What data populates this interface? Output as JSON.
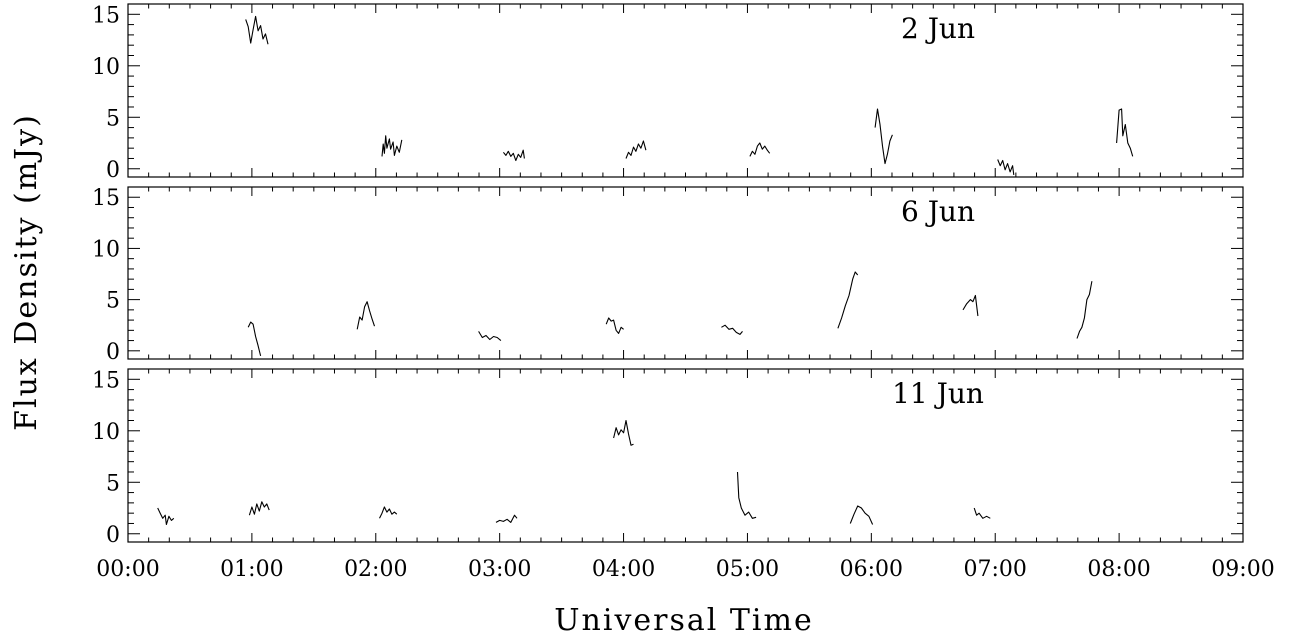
{
  "chart_data": {
    "type": "line",
    "xlabel": "Universal Time",
    "ylabel": "Flux Density (mJy)",
    "xlim_hours": [
      0,
      9
    ],
    "ylim": [
      -0.8,
      16
    ],
    "x_ticks": [
      "00:00",
      "01:00",
      "02:00",
      "03:00",
      "04:00",
      "05:00",
      "06:00",
      "07:00",
      "08:00",
      "09:00"
    ],
    "y_ticks": [
      0,
      5,
      10,
      15
    ],
    "grid": false,
    "panels": [
      {
        "label": "2 Jun",
        "segments": [
          [
            [
              0.95,
              14.5
            ],
            [
              0.97,
              13.8
            ],
            [
              0.99,
              12.2
            ],
            [
              1.01,
              13.5
            ],
            [
              1.03,
              14.8
            ],
            [
              1.05,
              13.4
            ],
            [
              1.07,
              13.9
            ],
            [
              1.09,
              12.6
            ],
            [
              1.11,
              13.1
            ],
            [
              1.13,
              12.1
            ]
          ],
          [
            [
              2.05,
              1.2
            ],
            [
              2.06,
              2.4
            ],
            [
              2.07,
              1.5
            ],
            [
              2.08,
              3.2
            ],
            [
              2.09,
              2.0
            ],
            [
              2.11,
              2.9
            ],
            [
              2.12,
              1.9
            ],
            [
              2.14,
              2.6
            ],
            [
              2.15,
              1.3
            ],
            [
              2.17,
              2.2
            ],
            [
              2.19,
              1.6
            ],
            [
              2.21,
              2.8
            ]
          ],
          [
            [
              3.03,
              1.6
            ],
            [
              3.05,
              1.3
            ],
            [
              3.07,
              1.7
            ],
            [
              3.09,
              1.2
            ],
            [
              3.11,
              1.5
            ],
            [
              3.13,
              0.8
            ],
            [
              3.15,
              1.4
            ],
            [
              3.17,
              1.1
            ],
            [
              3.19,
              1.8
            ],
            [
              3.2,
              1.0
            ]
          ],
          [
            [
              4.02,
              1.0
            ],
            [
              4.04,
              1.6
            ],
            [
              4.06,
              1.3
            ],
            [
              4.08,
              2.1
            ],
            [
              4.1,
              1.7
            ],
            [
              4.12,
              2.4
            ],
            [
              4.14,
              2.0
            ],
            [
              4.16,
              2.7
            ],
            [
              4.18,
              1.8
            ]
          ],
          [
            [
              5.02,
              1.2
            ],
            [
              5.04,
              1.7
            ],
            [
              5.06,
              1.4
            ],
            [
              5.08,
              2.2
            ],
            [
              5.1,
              2.5
            ],
            [
              5.12,
              1.9
            ],
            [
              5.14,
              2.2
            ],
            [
              5.16,
              1.8
            ],
            [
              5.18,
              1.5
            ]
          ],
          [
            [
              6.03,
              4.0
            ],
            [
              6.05,
              5.8
            ],
            [
              6.07,
              4.3
            ],
            [
              6.09,
              2.2
            ],
            [
              6.11,
              0.5
            ],
            [
              6.13,
              1.4
            ],
            [
              6.15,
              2.7
            ],
            [
              6.17,
              3.3
            ]
          ],
          [
            [
              7.02,
              0.9
            ],
            [
              7.04,
              0.3
            ],
            [
              7.06,
              0.8
            ],
            [
              7.08,
              -0.1
            ],
            [
              7.1,
              0.5
            ],
            [
              7.12,
              -0.3
            ],
            [
              7.14,
              0.3
            ],
            [
              7.15,
              -0.6
            ]
          ],
          [
            [
              7.98,
              2.5
            ],
            [
              8.0,
              5.7
            ],
            [
              8.02,
              5.8
            ],
            [
              8.03,
              3.2
            ],
            [
              8.05,
              4.3
            ],
            [
              8.07,
              2.5
            ],
            [
              8.09,
              2.0
            ],
            [
              8.11,
              1.2
            ]
          ]
        ]
      },
      {
        "label": "6 Jun",
        "segments": [
          [
            [
              0.97,
              2.3
            ],
            [
              0.99,
              2.8
            ],
            [
              1.01,
              2.6
            ],
            [
              1.03,
              1.4
            ],
            [
              1.05,
              0.5
            ],
            [
              1.07,
              -0.5
            ]
          ],
          [
            [
              1.85,
              2.1
            ],
            [
              1.87,
              3.3
            ],
            [
              1.89,
              3.0
            ],
            [
              1.91,
              4.3
            ],
            [
              1.93,
              4.8
            ],
            [
              1.95,
              3.9
            ],
            [
              1.97,
              3.1
            ],
            [
              1.99,
              2.4
            ]
          ],
          [
            [
              2.83,
              1.9
            ],
            [
              2.86,
              1.3
            ],
            [
              2.89,
              1.5
            ],
            [
              2.92,
              1.1
            ],
            [
              2.95,
              1.4
            ],
            [
              2.98,
              1.3
            ],
            [
              3.01,
              1.0
            ]
          ],
          [
            [
              3.86,
              2.6
            ],
            [
              3.88,
              3.2
            ],
            [
              3.9,
              2.9
            ],
            [
              3.92,
              3.0
            ],
            [
              3.94,
              2.0
            ],
            [
              3.96,
              1.7
            ],
            [
              3.98,
              2.3
            ],
            [
              4.0,
              2.1
            ]
          ],
          [
            [
              4.79,
              2.3
            ],
            [
              4.82,
              2.5
            ],
            [
              4.85,
              2.1
            ],
            [
              4.88,
              2.2
            ],
            [
              4.91,
              1.8
            ],
            [
              4.94,
              1.6
            ],
            [
              4.96,
              1.9
            ]
          ],
          [
            [
              5.73,
              2.2
            ],
            [
              5.76,
              3.2
            ],
            [
              5.79,
              4.4
            ],
            [
              5.82,
              5.4
            ],
            [
              5.85,
              7.0
            ],
            [
              5.87,
              7.7
            ],
            [
              5.89,
              7.4
            ]
          ],
          [
            [
              6.74,
              4.0
            ],
            [
              6.77,
              4.6
            ],
            [
              6.8,
              5.0
            ],
            [
              6.82,
              4.8
            ],
            [
              6.84,
              5.4
            ],
            [
              6.86,
              3.4
            ]
          ],
          [
            [
              7.66,
              1.2
            ],
            [
              7.68,
              1.9
            ],
            [
              7.7,
              2.3
            ],
            [
              7.72,
              3.2
            ],
            [
              7.74,
              5.0
            ],
            [
              7.76,
              5.5
            ],
            [
              7.78,
              6.8
            ]
          ]
        ]
      },
      {
        "label": "11 Jun",
        "segments": [
          [
            [
              0.24,
              2.5
            ],
            [
              0.26,
              2.0
            ],
            [
              0.28,
              1.5
            ],
            [
              0.3,
              1.8
            ],
            [
              0.31,
              0.9
            ],
            [
              0.33,
              1.7
            ],
            [
              0.35,
              1.3
            ],
            [
              0.37,
              1.5
            ]
          ],
          [
            [
              0.98,
              1.8
            ],
            [
              1.0,
              2.6
            ],
            [
              1.02,
              1.9
            ],
            [
              1.04,
              2.9
            ],
            [
              1.06,
              2.2
            ],
            [
              1.08,
              3.1
            ],
            [
              1.1,
              2.6
            ],
            [
              1.12,
              2.9
            ],
            [
              1.14,
              2.3
            ]
          ],
          [
            [
              2.03,
              1.5
            ],
            [
              2.05,
              2.0
            ],
            [
              2.07,
              2.6
            ],
            [
              2.09,
              2.1
            ],
            [
              2.11,
              2.4
            ],
            [
              2.13,
              1.9
            ],
            [
              2.15,
              2.1
            ],
            [
              2.17,
              1.9
            ]
          ],
          [
            [
              2.97,
              1.1
            ],
            [
              3.0,
              1.3
            ],
            [
              3.03,
              1.2
            ],
            [
              3.06,
              1.4
            ],
            [
              3.09,
              1.1
            ],
            [
              3.12,
              1.8
            ],
            [
              3.14,
              1.5
            ]
          ],
          [
            [
              3.92,
              9.3
            ],
            [
              3.94,
              10.3
            ],
            [
              3.96,
              9.6
            ],
            [
              3.98,
              10.1
            ],
            [
              4.0,
              9.8
            ],
            [
              4.02,
              11.0
            ],
            [
              4.04,
              9.7
            ],
            [
              4.06,
              8.6
            ],
            [
              4.08,
              8.7
            ]
          ],
          [
            [
              4.92,
              6.0
            ],
            [
              4.93,
              3.5
            ],
            [
              4.95,
              2.5
            ],
            [
              4.98,
              1.8
            ],
            [
              5.01,
              2.1
            ],
            [
              5.04,
              1.5
            ],
            [
              5.07,
              1.6
            ]
          ],
          [
            [
              5.83,
              1.0
            ],
            [
              5.86,
              1.9
            ],
            [
              5.89,
              2.7
            ],
            [
              5.92,
              2.5
            ],
            [
              5.95,
              2.0
            ],
            [
              5.98,
              1.7
            ],
            [
              6.01,
              0.9
            ]
          ],
          [
            [
              6.83,
              2.5
            ],
            [
              6.85,
              1.8
            ],
            [
              6.87,
              2.0
            ],
            [
              6.9,
              1.5
            ],
            [
              6.93,
              1.7
            ],
            [
              6.96,
              1.5
            ]
          ]
        ]
      }
    ]
  }
}
